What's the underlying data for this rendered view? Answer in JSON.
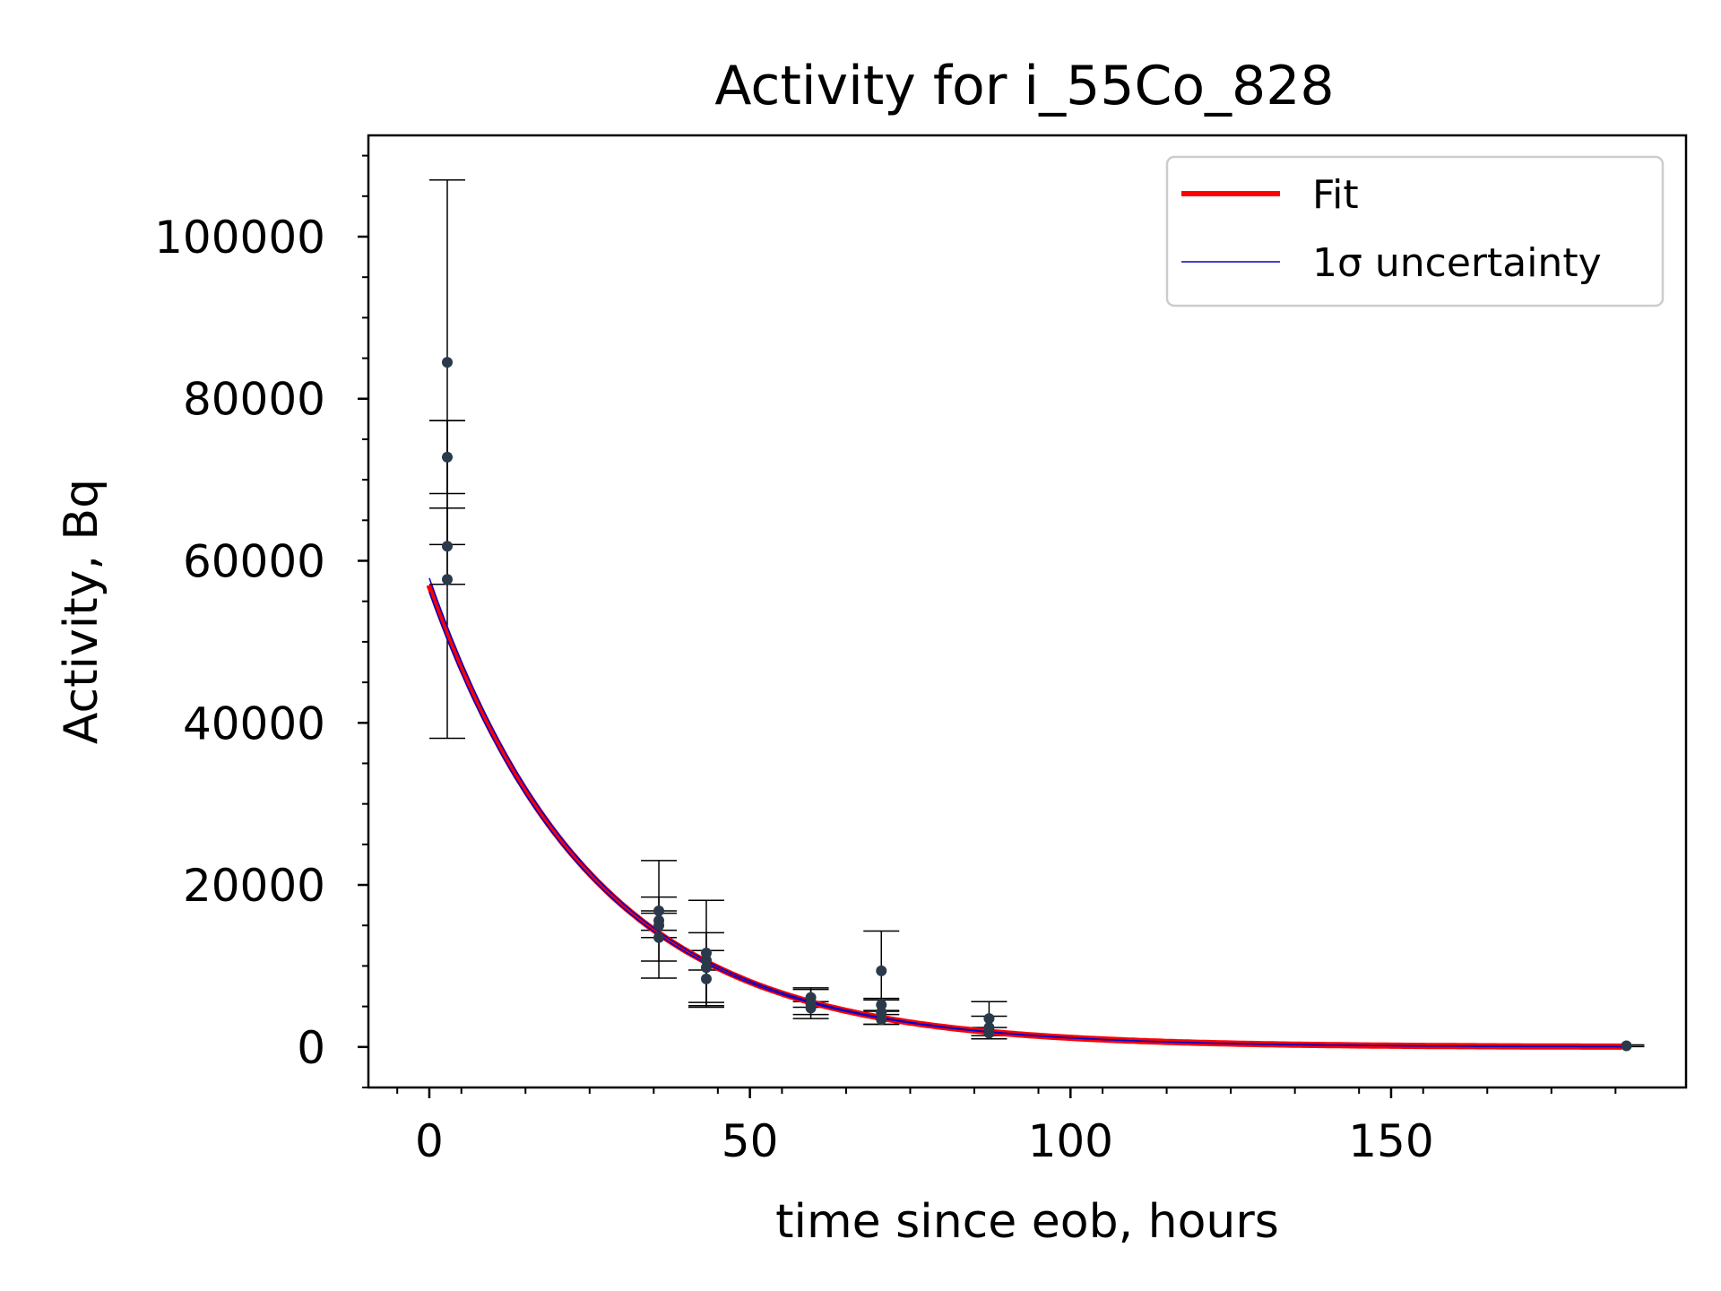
{
  "chart_data": {
    "type": "scatter",
    "title": "Activity for i_55Co_828",
    "xlabel": "time since eob, hours",
    "ylabel": "Activity, Bq",
    "xlim": [
      -9.5,
      196
    ],
    "ylim": [
      -5000,
      112500
    ],
    "xticks": [
      0,
      50,
      100,
      150
    ],
    "yticks": [
      0,
      20000,
      40000,
      60000,
      80000,
      100000
    ],
    "xtick_labels": [
      "0",
      "50",
      "100",
      "150"
    ],
    "ytick_labels": [
      "0",
      "20000",
      "40000",
      "60000",
      "80000",
      "100000"
    ],
    "grid": false,
    "legend_position": "top-right",
    "legend": [
      {
        "label": "Fit",
        "color": "#ff0000"
      },
      {
        "label": "1σ uncertainty",
        "color": "#0000cc"
      }
    ],
    "fit": {
      "A0": 57000,
      "lambda": 0.0392,
      "x_start": 0,
      "x_end": 186
    },
    "colors": {
      "points": "#2a3a4a",
      "fit": "#ff0000",
      "uncertainty": "#0000cc",
      "errorbar": "#000000"
    },
    "series": [
      {
        "name": "Fit",
        "points": [
          {
            "x": 2.8,
            "y": 84500,
            "err": 22500
          },
          {
            "x": 2.8,
            "y": 72800,
            "err": 4500
          },
          {
            "x": 2.8,
            "y": 61800,
            "err": 4700
          },
          {
            "x": 2.8,
            "y": 57700,
            "err": 19600
          },
          {
            "x": 35.8,
            "y": 16800,
            "err": 6200
          },
          {
            "x": 35.8,
            "y": 15600,
            "err": 1200
          },
          {
            "x": 35.8,
            "y": 15000,
            "err": 1500
          },
          {
            "x": 35.8,
            "y": 13500,
            "err": 5000
          },
          {
            "x": 43.2,
            "y": 11600,
            "err": 6500
          },
          {
            "x": 43.2,
            "y": 10700,
            "err": 1200
          },
          {
            "x": 43.2,
            "y": 9800,
            "err": 4300
          },
          {
            "x": 43.2,
            "y": 8400,
            "err": 3500
          },
          {
            "x": 59.5,
            "y": 6100,
            "err": 1200
          },
          {
            "x": 59.5,
            "y": 5300,
            "err": 1800
          },
          {
            "x": 59.5,
            "y": 4800,
            "err": 800
          },
          {
            "x": 70.5,
            "y": 9400,
            "err": 4900
          },
          {
            "x": 70.5,
            "y": 5200,
            "err": 800
          },
          {
            "x": 70.5,
            "y": 4300,
            "err": 1500
          },
          {
            "x": 70.5,
            "y": 3400,
            "err": 600
          },
          {
            "x": 87.3,
            "y": 3500,
            "err": 2100
          },
          {
            "x": 87.3,
            "y": 2400,
            "err": 1400
          },
          {
            "x": 87.3,
            "y": 1700,
            "err": 700
          },
          {
            "x": 186.7,
            "y": 150,
            "err": 100
          }
        ]
      }
    ]
  }
}
